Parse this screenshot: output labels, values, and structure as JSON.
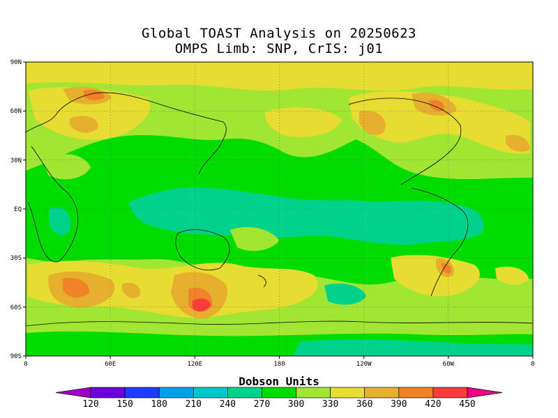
{
  "title": {
    "line1": "Global TOAST Analysis on 20250623",
    "line2": "OMPS Limb: SNP,  CrIS: j01"
  },
  "lat_ticks": [
    "90N",
    "60N",
    "30N",
    "EQ",
    "30S",
    "60S",
    "90S"
  ],
  "lon_ticks": [
    "0",
    "60E",
    "120E",
    "180",
    "120W",
    "60W",
    "0"
  ],
  "colorbar": {
    "title": "Dobson Units",
    "labels": [
      "120",
      "150",
      "180",
      "210",
      "240",
      "270",
      "300",
      "330",
      "360",
      "390",
      "420",
      "450"
    ],
    "colors": [
      "#a000c8",
      "#6e00dc",
      "#1e3cff",
      "#00a0e6",
      "#00c8c8",
      "#00d28c",
      "#00dc00",
      "#a0e632",
      "#e6dc32",
      "#e6af2d",
      "#f08228",
      "#fa3c3c",
      "#f00082"
    ]
  },
  "field_colors": {
    "c300": "#00dc00",
    "c330": "#a0e632",
    "c360": "#e6dc32",
    "c390": "#e6af2d",
    "c420": "#f08228",
    "c450": "#fa3c3c",
    "c270": "#00d28c",
    "c240": "#00c8c8"
  }
}
